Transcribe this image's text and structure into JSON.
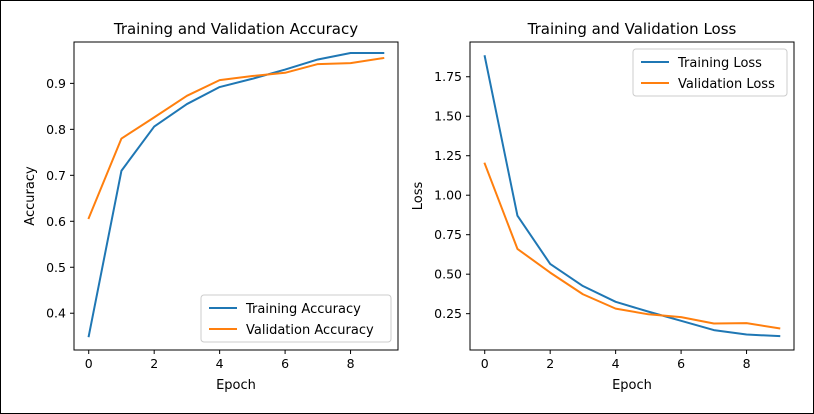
{
  "colors": {
    "training": "#1f77b4",
    "validation": "#ff7f0e"
  },
  "chart_data": [
    {
      "type": "line",
      "title": "Training and Validation Accuracy",
      "xlabel": "Epoch",
      "ylabel": "Accuracy",
      "x": [
        0,
        1,
        2,
        3,
        4,
        5,
        6,
        7,
        8,
        9
      ],
      "xlim": [
        -0.45,
        9.45
      ],
      "ylim": [
        0.32,
        0.99
      ],
      "xticks": [
        0,
        2,
        4,
        6,
        8
      ],
      "yticks": [
        0.4,
        0.5,
        0.6,
        0.7,
        0.8,
        0.9
      ],
      "grid": false,
      "legend_position": "lower-right",
      "series": [
        {
          "name": "Training Accuracy",
          "color": "#1f77b4",
          "values": [
            0.35,
            0.71,
            0.806,
            0.855,
            0.892,
            0.91,
            0.93,
            0.952,
            0.966,
            0.966
          ]
        },
        {
          "name": "Validation Accuracy",
          "color": "#ff7f0e",
          "values": [
            0.607,
            0.78,
            0.826,
            0.873,
            0.907,
            0.916,
            0.923,
            0.942,
            0.944,
            0.955
          ]
        }
      ]
    },
    {
      "type": "line",
      "title": "Training and Validation Loss",
      "xlabel": "Epoch",
      "ylabel": "Loss",
      "x": [
        0,
        1,
        2,
        3,
        4,
        5,
        6,
        7,
        8,
        9
      ],
      "xlim": [
        -0.45,
        9.45
      ],
      "ylim": [
        0.02,
        1.97
      ],
      "xticks": [
        0,
        2,
        4,
        6,
        8
      ],
      "yticks": [
        0.25,
        0.5,
        0.75,
        1.0,
        1.25,
        1.5,
        1.75
      ],
      "ytick_labels": [
        "0.25",
        "0.50",
        "0.75",
        "1.00",
        "1.25",
        "1.50",
        "1.75"
      ],
      "grid": false,
      "legend_position": "upper-right",
      "series": [
        {
          "name": "Training Loss",
          "color": "#1f77b4",
          "values": [
            1.88,
            0.87,
            0.565,
            0.425,
            0.325,
            0.263,
            0.205,
            0.146,
            0.118,
            0.108
          ]
        },
        {
          "name": "Validation Loss",
          "color": "#ff7f0e",
          "values": [
            1.2,
            0.66,
            0.51,
            0.373,
            0.282,
            0.246,
            0.228,
            0.188,
            0.19,
            0.157
          ]
        }
      ]
    }
  ]
}
